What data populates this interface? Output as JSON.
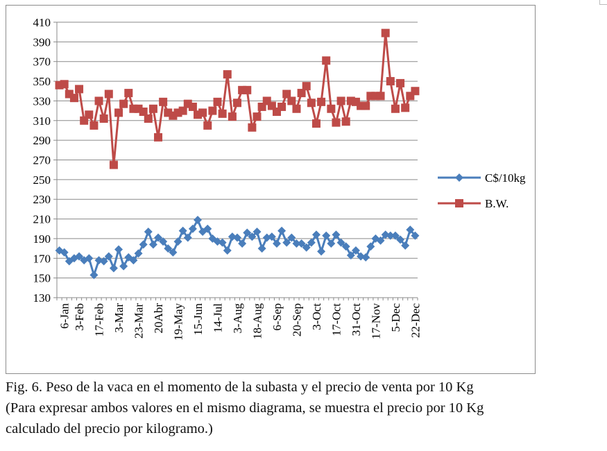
{
  "chart_data": {
    "type": "line",
    "title": "",
    "xlabel": "",
    "ylabel": "",
    "ylim": [
      130,
      410
    ],
    "yticks": [
      130,
      150,
      170,
      190,
      210,
      230,
      250,
      270,
      290,
      310,
      330,
      350,
      370,
      390,
      410
    ],
    "grid": true,
    "legend_position": "right",
    "x_tick_labels": [
      "6-Jan",
      "3-Feb",
      "17-Feb",
      "3-Mar",
      "23-Mar",
      "20Abr",
      "19-May",
      "15-Jun",
      "14-Jul",
      "3-Aug",
      "18-Aug",
      "6-Sep",
      "20-Sep",
      "3-Oct",
      "17-Oct",
      "31-Oct",
      "17-Nov",
      "5-Dec",
      "22-Dec"
    ],
    "x_tick_indices": [
      1,
      4,
      8,
      12,
      16,
      20,
      24,
      28,
      32,
      36,
      40,
      44,
      48,
      52,
      56,
      60,
      64,
      68,
      72
    ],
    "series": [
      {
        "name": "C$/10kg",
        "color": "#4a7ebb",
        "marker": "diamond",
        "values": [
          178,
          176,
          167,
          170,
          172,
          168,
          170,
          153,
          168,
          167,
          172,
          160,
          179,
          162,
          171,
          168,
          175,
          184,
          197,
          184,
          191,
          187,
          180,
          176,
          187,
          198,
          191,
          200,
          209,
          197,
          200,
          190,
          187,
          186,
          178,
          192,
          191,
          185,
          196,
          192,
          197,
          180,
          191,
          192,
          185,
          198,
          186,
          191,
          185,
          185,
          181,
          186,
          194,
          177,
          193,
          185,
          194,
          186,
          182,
          173,
          178,
          172,
          171,
          182,
          190,
          188,
          194,
          193,
          193,
          189,
          183,
          199,
          193
        ]
      },
      {
        "name": "B.W.",
        "color": "#be4b48",
        "marker": "square",
        "values": [
          346,
          347,
          337,
          333,
          342,
          310,
          316,
          305,
          330,
          312,
          337,
          265,
          318,
          327,
          338,
          322,
          322,
          319,
          312,
          322,
          293,
          329,
          318,
          315,
          318,
          320,
          327,
          324,
          316,
          318,
          305,
          320,
          329,
          317,
          357,
          314,
          328,
          341,
          341,
          303,
          314,
          324,
          330,
          325,
          319,
          324,
          337,
          330,
          322,
          338,
          345,
          328,
          307,
          329,
          371,
          322,
          308,
          330,
          309,
          330,
          329,
          325,
          325,
          335,
          335,
          335,
          399,
          350,
          322,
          348,
          323,
          335,
          340
        ]
      }
    ]
  },
  "caption": {
    "line1": "Fig. 6. Peso de la vaca en el momento de la subasta y el precio de venta por 10 Kg",
    "line2": "(Para expresar ambos valores en el mismo diagrama, se muestra el precio por 10 Kg",
    "line3": "calculado del precio por kilogramo.)"
  }
}
